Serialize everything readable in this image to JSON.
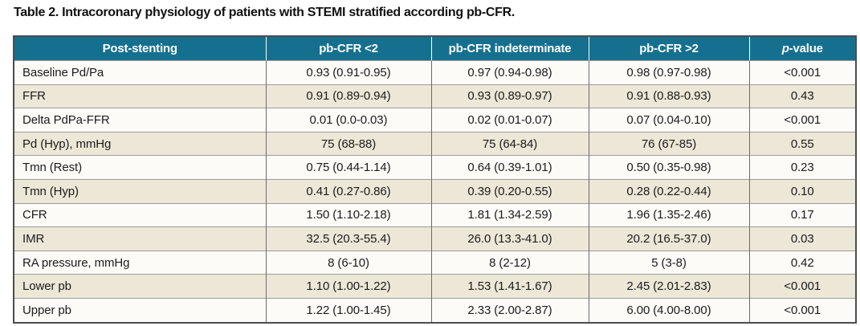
{
  "title": "Table 2. Intracoronary physiology of patients with STEMI stratified according pb-CFR.",
  "colors": {
    "header_bg": "#15708f",
    "header_text": "#ffffff",
    "row_odd_bg": "#fcfbf8",
    "row_even_bg": "#ece7d7",
    "outer_border": "#4d4d4d",
    "inner_border": "#9c9c9c"
  },
  "table": {
    "header": {
      "col0": "Post-stenting",
      "col1": "pb-CFR <2",
      "col2": "pb-CFR indeterminate",
      "col3": "pb-CFR >2",
      "col4_italic": "p",
      "col4_rest": "-value"
    },
    "rows": [
      {
        "label": "Baseline Pd/Pa",
        "values": [
          "0.93 (0.91-0.95)",
          "0.97 (0.94-0.98)",
          "0.98 (0.97-0.98)",
          "<0.001"
        ]
      },
      {
        "label": "FFR",
        "values": [
          "0.91 (0.89-0.94)",
          "0.93 (0.89-0.97)",
          "0.91 (0.88-0.93)",
          "0.43"
        ]
      },
      {
        "label": "Delta PdPa-FFR",
        "values": [
          "0.01 (0.0-0.03)",
          "0.02 (0.01-0.07)",
          "0.07 (0.04-0.10)",
          "<0.001"
        ]
      },
      {
        "label": "Pd (Hyp), mmHg",
        "values": [
          "75 (68-88)",
          "75 (64-84)",
          "76 (67-85)",
          "0.55"
        ]
      },
      {
        "label": "Tmn (Rest)",
        "values": [
          "0.75 (0.44-1.14)",
          "0.64 (0.39-1.01)",
          "0.50 (0.35-0.98)",
          "0.23"
        ]
      },
      {
        "label": "Tmn (Hyp)",
        "values": [
          "0.41 (0.27-0.86)",
          "0.39 (0.20-0.55)",
          "0.28 (0.22-0.44)",
          "0.10"
        ]
      },
      {
        "label": "CFR",
        "values": [
          "1.50 (1.10-2.18)",
          "1.81 (1.34-2.59)",
          "1.96 (1.35-2.46)",
          "0.17"
        ]
      },
      {
        "label": "IMR",
        "values": [
          "32.5 (20.3-55.4)",
          "26.0 (13.3-41.0)",
          "20.2 (16.5-37.0)",
          "0.03"
        ]
      },
      {
        "label": "RA pressure, mmHg",
        "values": [
          "8 (6-10)",
          "8 (2-12)",
          "5 (3-8)",
          "0.42"
        ]
      },
      {
        "label": "Lower pb",
        "values": [
          "1.10 (1.00-1.22)",
          "1.53 (1.41-1.67)",
          "2.45 (2.01-2.83)",
          "<0.001"
        ]
      },
      {
        "label": "Upper pb",
        "values": [
          "1.22 (1.00-1.45)",
          "2.33 (2.00-2.87)",
          "6.00 (4.00-8.00)",
          "<0.001"
        ]
      }
    ]
  },
  "chart_data": {
    "type": "table",
    "title": "Table 2. Intracoronary physiology of patients with STEMI stratified according pb-CFR.",
    "columns": [
      "Post-stenting",
      "pb-CFR <2",
      "pb-CFR indeterminate",
      "pb-CFR >2",
      "p-value"
    ],
    "rows": [
      [
        "Baseline Pd/Pa",
        "0.93 (0.91-0.95)",
        "0.97 (0.94-0.98)",
        "0.98 (0.97-0.98)",
        "<0.001"
      ],
      [
        "FFR",
        "0.91 (0.89-0.94)",
        "0.93 (0.89-0.97)",
        "0.91 (0.88-0.93)",
        "0.43"
      ],
      [
        "Delta PdPa-FFR",
        "0.01 (0.0-0.03)",
        "0.02 (0.01-0.07)",
        "0.07 (0.04-0.10)",
        "<0.001"
      ],
      [
        "Pd (Hyp), mmHg",
        "75 (68-88)",
        "75 (64-84)",
        "76 (67-85)",
        "0.55"
      ],
      [
        "Tmn (Rest)",
        "0.75 (0.44-1.14)",
        "0.64 (0.39-1.01)",
        "0.50 (0.35-0.98)",
        "0.23"
      ],
      [
        "Tmn (Hyp)",
        "0.41 (0.27-0.86)",
        "0.39 (0.20-0.55)",
        "0.28 (0.22-0.44)",
        "0.10"
      ],
      [
        "CFR",
        "1.50 (1.10-2.18)",
        "1.81 (1.34-2.59)",
        "1.96 (1.35-2.46)",
        "0.17"
      ],
      [
        "IMR",
        "32.5 (20.3-55.4)",
        "26.0 (13.3-41.0)",
        "20.2 (16.5-37.0)",
        "0.03"
      ],
      [
        "RA pressure, mmHg",
        "8 (6-10)",
        "8 (2-12)",
        "5 (3-8)",
        "0.42"
      ],
      [
        "Lower pb",
        "1.10 (1.00-1.22)",
        "1.53 (1.41-1.67)",
        "2.45 (2.01-2.83)",
        "<0.001"
      ],
      [
        "Upper pb",
        "1.22 (1.00-1.45)",
        "2.33 (2.00-2.87)",
        "6.00 (4.00-8.00)",
        "<0.001"
      ]
    ]
  }
}
